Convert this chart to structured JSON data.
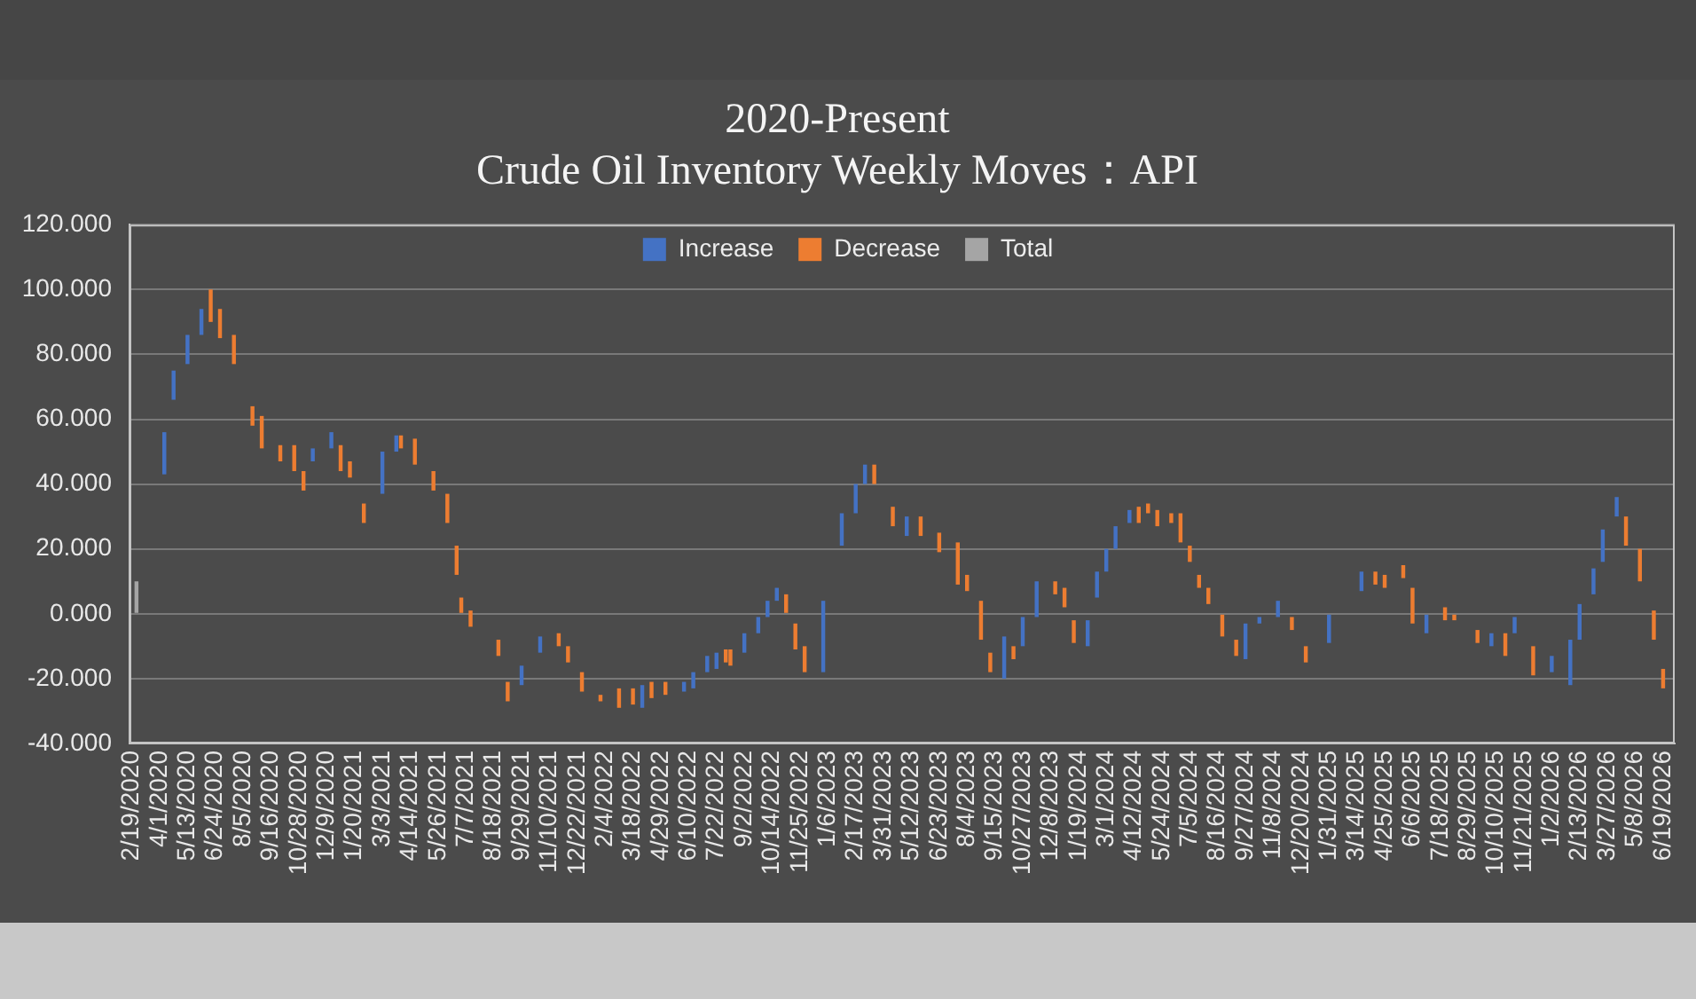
{
  "chart_data": {
    "type": "bar",
    "title": "2020-Present",
    "subtitle": "Crude Oil Inventory Weekly Moves：API",
    "categories": [
      "2/19/2020",
      null,
      null,
      null,
      null,
      null,
      "4/1/2020",
      null,
      null,
      null,
      null,
      null,
      "5/13/2020",
      null,
      null,
      null,
      null,
      null,
      "6/24/2020",
      null,
      null,
      null,
      null,
      null,
      "8/5/2020",
      null,
      null,
      null,
      null,
      null,
      "9/16/2020",
      null,
      null,
      null,
      null,
      null,
      "10/28/2020",
      null,
      null,
      null,
      null,
      null,
      "12/9/2020",
      null,
      null,
      null,
      null,
      null,
      "1/20/2021",
      null,
      null,
      null,
      null,
      null,
      "3/3/2021",
      null,
      null,
      null,
      null,
      null,
      "4/14/2021",
      null,
      null,
      null,
      null,
      null,
      "5/26/2021",
      null,
      null,
      null,
      null,
      null,
      "7/7/2021",
      null,
      null,
      null,
      null,
      null,
      "8/18/2021",
      null,
      null,
      null,
      null,
      null,
      "9/29/2021",
      null,
      null,
      null,
      null,
      null,
      "11/10/2021",
      null,
      null,
      null,
      null,
      null,
      "12/22/2021",
      null,
      null,
      null,
      null,
      null,
      "2/4/2022",
      null,
      null,
      null,
      null,
      null,
      "3/18/2022",
      null,
      null,
      null,
      null,
      null,
      "4/29/2022",
      null,
      null,
      null,
      null,
      null,
      "6/10/2022",
      null,
      null,
      null,
      null,
      null,
      "7/22/2022",
      null,
      null,
      null,
      null,
      null,
      "9/2/2022",
      null,
      null,
      null,
      null,
      null,
      "10/14/2022",
      null,
      null,
      null,
      null,
      null,
      "11/25/2022",
      null,
      null,
      null,
      null,
      null,
      "1/6/2023",
      null,
      null,
      null,
      null,
      null,
      "2/17/2023",
      null,
      null,
      null,
      null,
      null,
      "3/31/2023",
      null,
      null,
      null,
      null,
      null,
      "5/12/2023",
      null,
      null,
      null,
      null,
      null,
      "6/23/2023",
      null,
      null,
      null,
      null,
      null,
      "8/4/2023",
      null,
      null,
      null,
      null,
      null,
      "9/15/2023",
      null,
      null,
      null,
      null,
      null,
      "10/27/2023",
      null,
      null,
      null,
      null,
      null,
      "12/8/2023",
      null,
      null,
      null,
      null,
      null,
      "1/19/2024",
      null,
      null,
      null,
      null,
      null,
      "3/1/2024",
      null,
      null,
      null,
      null,
      null,
      "4/12/2024",
      null,
      null,
      null,
      null,
      null,
      "5/24/2024",
      null,
      null,
      null,
      null,
      null,
      "7/5/2024",
      null,
      null,
      null,
      null,
      null,
      "8/16/2024",
      null,
      null,
      null,
      null,
      null,
      "9/27/2024",
      null,
      null,
      null,
      null,
      null,
      "11/8/2024",
      null,
      null,
      null,
      null,
      null,
      "12/20/2024",
      null,
      null,
      null,
      null,
      null,
      "1/31/2025",
      null,
      null,
      null,
      null,
      null,
      "3/14/2025",
      null,
      null,
      null,
      null,
      null,
      "4/25/2025",
      null,
      null,
      null,
      null,
      null,
      "6/6/2025",
      null,
      null,
      null,
      null,
      null,
      "7/18/2025",
      null,
      null,
      null,
      null,
      null,
      "8/29/2025",
      null,
      null,
      null,
      null,
      null,
      "10/10/2025",
      null,
      null,
      null,
      null,
      null,
      "11/21/2025",
      null,
      null,
      null,
      null,
      null,
      "1/2/2026",
      null,
      null,
      null,
      null,
      null,
      "2/13/2026",
      null,
      null,
      null,
      null,
      null,
      "3/27/2026",
      null,
      null,
      null,
      null,
      null,
      "5/8/2026",
      null,
      null,
      null,
      null,
      null,
      "6/19/2026",
      null,
      null
    ],
    "series": [
      {
        "name": "Increase",
        "color": "#4472c4",
        "base": [
          null,
          null,
          null,
          null,
          null,
          null,
          null,
          43,
          null,
          66,
          null,
          null,
          77,
          null,
          null,
          86,
          null,
          null,
          null,
          null,
          null,
          null,
          null,
          null,
          null,
          null,
          null,
          null,
          null,
          null,
          null,
          null,
          null,
          null,
          null,
          null,
          null,
          null,
          null,
          47,
          null,
          null,
          null,
          51,
          null,
          null,
          null,
          null,
          null,
          null,
          null,
          null,
          null,
          null,
          37,
          null,
          null,
          50,
          null,
          null,
          null,
          null,
          null,
          null,
          null,
          null,
          null,
          null,
          null,
          null,
          null,
          null,
          null,
          null,
          null,
          null,
          null,
          null,
          null,
          null,
          null,
          null,
          null,
          null,
          -22,
          null,
          null,
          null,
          -12,
          null,
          null,
          null,
          null,
          null,
          null,
          null,
          null,
          null,
          null,
          null,
          null,
          null,
          null,
          null,
          null,
          null,
          null,
          null,
          null,
          null,
          -29,
          null,
          null,
          null,
          null,
          null,
          null,
          null,
          null,
          -24,
          null,
          -23,
          null,
          null,
          -18,
          null,
          -17,
          null,
          null,
          null,
          null,
          null,
          -12,
          null,
          null,
          -6,
          null,
          -1,
          null,
          4,
          null,
          null,
          null,
          null,
          null,
          null,
          null,
          null,
          null,
          -18,
          null,
          null,
          null,
          21,
          null,
          null,
          31,
          null,
          40,
          null,
          null,
          null,
          null,
          null,
          null,
          null,
          null,
          24,
          null,
          null,
          null,
          null,
          null,
          null,
          null,
          null,
          null,
          null,
          null,
          null,
          null,
          null,
          null,
          null,
          null,
          null,
          null,
          null,
          -20,
          null,
          null,
          null,
          -10,
          null,
          null,
          -1,
          null,
          null,
          null,
          null,
          null,
          null,
          null,
          null,
          null,
          null,
          -10,
          null,
          5,
          null,
          13,
          null,
          20,
          null,
          null,
          28,
          null,
          null,
          null,
          null,
          null,
          null,
          null,
          null,
          null,
          null,
          null,
          null,
          null,
          null,
          null,
          null,
          null,
          null,
          null,
          null,
          null,
          null,
          null,
          null,
          -14,
          null,
          null,
          -3,
          null,
          null,
          null,
          -1,
          null,
          null,
          null,
          null,
          null,
          null,
          null,
          null,
          null,
          null,
          -9,
          null,
          null,
          null,
          null,
          null,
          null,
          7,
          null,
          null,
          null,
          null,
          null,
          null,
          null,
          null,
          null,
          null,
          null,
          null,
          null,
          -6,
          null,
          null,
          null,
          null,
          null,
          null,
          null,
          null,
          null,
          null,
          null,
          null,
          null,
          -10,
          null,
          null,
          null,
          null,
          -6,
          null,
          null,
          null,
          null,
          null,
          null,
          null,
          -18,
          null,
          null,
          null,
          -22,
          null,
          -8,
          null,
          null,
          6,
          null,
          16,
          null,
          null,
          30,
          null,
          null,
          null,
          null,
          null,
          null,
          null,
          null,
          null,
          null,
          null,
          null
        ],
        "values": [
          null,
          null,
          null,
          null,
          null,
          null,
          null,
          13,
          null,
          9,
          null,
          null,
          9,
          null,
          null,
          8,
          null,
          null,
          null,
          null,
          null,
          null,
          null,
          null,
          null,
          null,
          null,
          null,
          null,
          null,
          null,
          null,
          null,
          null,
          null,
          null,
          null,
          null,
          null,
          4,
          null,
          null,
          null,
          5,
          null,
          null,
          null,
          null,
          null,
          null,
          null,
          null,
          null,
          null,
          13,
          null,
          null,
          5,
          null,
          null,
          null,
          null,
          null,
          null,
          null,
          null,
          null,
          null,
          null,
          null,
          null,
          null,
          null,
          null,
          null,
          null,
          null,
          null,
          null,
          null,
          null,
          null,
          null,
          null,
          6,
          null,
          null,
          null,
          5,
          null,
          null,
          null,
          null,
          null,
          null,
          null,
          null,
          null,
          null,
          null,
          null,
          null,
          null,
          null,
          null,
          null,
          null,
          null,
          null,
          null,
          7,
          null,
          null,
          null,
          null,
          null,
          null,
          null,
          null,
          3,
          null,
          5,
          null,
          null,
          5,
          null,
          5,
          null,
          null,
          null,
          null,
          null,
          6,
          null,
          null,
          5,
          null,
          5,
          null,
          4,
          null,
          null,
          null,
          null,
          null,
          null,
          null,
          null,
          null,
          22,
          null,
          null,
          null,
          10,
          null,
          null,
          9,
          null,
          6,
          null,
          null,
          null,
          null,
          null,
          null,
          null,
          null,
          6,
          null,
          null,
          null,
          null,
          null,
          null,
          null,
          null,
          null,
          null,
          null,
          null,
          null,
          null,
          null,
          null,
          null,
          null,
          null,
          null,
          13,
          null,
          null,
          null,
          9,
          null,
          null,
          11,
          null,
          null,
          null,
          null,
          null,
          null,
          null,
          null,
          null,
          null,
          8,
          null,
          8,
          null,
          7,
          null,
          7,
          null,
          null,
          4,
          null,
          null,
          null,
          null,
          null,
          null,
          null,
          null,
          null,
          null,
          null,
          null,
          null,
          null,
          null,
          null,
          null,
          null,
          null,
          null,
          null,
          null,
          null,
          null,
          11,
          null,
          null,
          2,
          null,
          null,
          null,
          5,
          null,
          null,
          null,
          null,
          null,
          null,
          null,
          null,
          null,
          null,
          9,
          null,
          null,
          null,
          null,
          null,
          null,
          6,
          null,
          null,
          null,
          null,
          null,
          null,
          null,
          null,
          null,
          null,
          null,
          null,
          null,
          6,
          null,
          null,
          null,
          null,
          null,
          null,
          null,
          null,
          null,
          null,
          null,
          null,
          null,
          4,
          null,
          null,
          null,
          null,
          5,
          null,
          null,
          null,
          null,
          null,
          null,
          null,
          5,
          null,
          null,
          null,
          14,
          null,
          11,
          null,
          null,
          8,
          null,
          10,
          null,
          null,
          6,
          null,
          null,
          null,
          null,
          null,
          null,
          null,
          null,
          null,
          null,
          null,
          null
        ]
      },
      {
        "name": "Decrease",
        "color": "#ed7d31",
        "base": [
          null,
          null,
          null,
          null,
          null,
          null,
          null,
          null,
          null,
          null,
          null,
          null,
          null,
          null,
          null,
          null,
          null,
          100,
          null,
          94,
          null,
          null,
          86,
          null,
          null,
          null,
          64,
          null,
          61,
          null,
          null,
          null,
          52,
          null,
          null,
          52,
          null,
          44,
          null,
          null,
          null,
          null,
          null,
          null,
          null,
          52,
          null,
          47,
          null,
          null,
          34,
          null,
          null,
          null,
          null,
          null,
          null,
          null,
          55,
          null,
          null,
          54,
          null,
          null,
          null,
          44,
          null,
          null,
          37,
          null,
          21,
          5,
          null,
          1,
          null,
          null,
          null,
          null,
          null,
          -8,
          null,
          -21,
          null,
          null,
          null,
          null,
          null,
          null,
          null,
          null,
          null,
          null,
          -6,
          null,
          -10,
          null,
          null,
          -18,
          null,
          null,
          null,
          -25,
          null,
          null,
          null,
          -23,
          null,
          null,
          -23,
          null,
          null,
          null,
          -21,
          null,
          null,
          -21,
          null,
          null,
          null,
          null,
          null,
          null,
          null,
          null,
          null,
          null,
          null,
          null,
          -11,
          -11,
          null,
          null,
          null,
          null,
          null,
          null,
          null,
          null,
          null,
          null,
          null,
          6,
          null,
          -3,
          null,
          -10,
          null,
          null,
          null,
          null,
          null,
          null,
          null,
          null,
          null,
          null,
          null,
          null,
          null,
          null,
          46,
          null,
          null,
          null,
          33,
          null,
          null,
          null,
          null,
          null,
          30,
          null,
          null,
          null,
          25,
          null,
          null,
          null,
          22,
          null,
          12,
          null,
          null,
          4,
          null,
          -12,
          null,
          null,
          null,
          null,
          -10,
          null,
          null,
          null,
          null,
          null,
          null,
          null,
          null,
          10,
          null,
          8,
          null,
          -2,
          null,
          null,
          null,
          null,
          null,
          null,
          null,
          null,
          null,
          null,
          null,
          null,
          null,
          33,
          null,
          34,
          null,
          32,
          null,
          null,
          31,
          null,
          31,
          null,
          21,
          null,
          12,
          null,
          8,
          null,
          null,
          0,
          null,
          null,
          -8,
          null,
          null,
          null,
          null,
          null,
          null,
          null,
          null,
          null,
          null,
          null,
          -1,
          null,
          null,
          -10,
          null,
          null,
          null,
          null,
          null,
          null,
          null,
          null,
          null,
          null,
          null,
          null,
          null,
          null,
          13,
          null,
          12,
          null,
          null,
          null,
          15,
          null,
          8,
          null,
          null,
          null,
          null,
          null,
          null,
          2,
          null,
          0,
          null,
          null,
          null,
          null,
          -5,
          null,
          null,
          null,
          null,
          null,
          -6,
          null,
          null,
          null,
          null,
          null,
          -10,
          null,
          null,
          null,
          null,
          null,
          null,
          null,
          null,
          null,
          null,
          null,
          null,
          null,
          null,
          null,
          null,
          null,
          null,
          null,
          30,
          null,
          null,
          20,
          null,
          null,
          1,
          null,
          -17,
          null,
          null
        ],
        "values": [
          null,
          null,
          null,
          null,
          null,
          null,
          null,
          null,
          null,
          null,
          null,
          null,
          null,
          null,
          null,
          null,
          null,
          -10,
          null,
          -9,
          null,
          null,
          -9,
          null,
          null,
          null,
          -6,
          null,
          -10,
          null,
          null,
          null,
          -5,
          null,
          null,
          -8,
          null,
          -6,
          null,
          null,
          null,
          null,
          null,
          null,
          null,
          -8,
          null,
          -5,
          null,
          null,
          -6,
          null,
          null,
          null,
          null,
          null,
          null,
          null,
          -4,
          null,
          null,
          -8,
          null,
          null,
          null,
          -6,
          null,
          null,
          -9,
          null,
          -9,
          -5,
          null,
          -5,
          null,
          null,
          null,
          null,
          null,
          -5,
          null,
          -6,
          null,
          null,
          null,
          null,
          null,
          null,
          null,
          null,
          null,
          null,
          -4,
          null,
          -5,
          null,
          null,
          -6,
          null,
          null,
          null,
          -2,
          null,
          null,
          null,
          -6,
          null,
          null,
          -5,
          null,
          null,
          null,
          -5,
          null,
          null,
          -4,
          null,
          null,
          null,
          null,
          null,
          null,
          null,
          null,
          null,
          null,
          null,
          null,
          -4,
          -5,
          null,
          null,
          null,
          null,
          null,
          null,
          null,
          null,
          null,
          null,
          null,
          -6,
          null,
          -8,
          null,
          -8,
          null,
          null,
          null,
          null,
          null,
          null,
          null,
          null,
          null,
          null,
          null,
          null,
          null,
          null,
          -6,
          null,
          null,
          null,
          -6,
          null,
          null,
          null,
          null,
          null,
          -6,
          null,
          null,
          null,
          -6,
          null,
          null,
          null,
          -13,
          null,
          -5,
          null,
          null,
          -12,
          null,
          -6,
          null,
          null,
          null,
          null,
          -4,
          null,
          null,
          null,
          null,
          null,
          null,
          null,
          null,
          -4,
          null,
          -6,
          null,
          -7,
          null,
          null,
          null,
          null,
          null,
          null,
          null,
          null,
          null,
          null,
          null,
          null,
          null,
          -5,
          null,
          -3,
          null,
          -5,
          null,
          null,
          -3,
          null,
          -9,
          null,
          -5,
          null,
          -4,
          null,
          -5,
          null,
          null,
          -7,
          null,
          null,
          -5,
          null,
          null,
          null,
          null,
          null,
          null,
          null,
          null,
          null,
          null,
          null,
          -4,
          null,
          null,
          -5,
          null,
          null,
          null,
          null,
          null,
          null,
          null,
          null,
          null,
          null,
          null,
          null,
          null,
          null,
          -4,
          null,
          -4,
          null,
          null,
          null,
          -4,
          null,
          -11,
          null,
          null,
          null,
          null,
          null,
          null,
          -4,
          null,
          -2,
          null,
          null,
          null,
          null,
          -4,
          null,
          null,
          null,
          null,
          null,
          -7,
          null,
          null,
          null,
          null,
          null,
          -9,
          null,
          null,
          null,
          null,
          null,
          null,
          null,
          null,
          null,
          null,
          null,
          null,
          null,
          null,
          null,
          null,
          null,
          null,
          null,
          -9,
          null,
          null,
          -10,
          null,
          null,
          -9,
          null,
          -6,
          null,
          null
        ]
      },
      {
        "name": "Total",
        "color": "#a5a5a5",
        "values": [
          null,
          10,
          null,
          null,
          null,
          null,
          null,
          null,
          null,
          null,
          null,
          null,
          null,
          null,
          null,
          null,
          null,
          null,
          null,
          null,
          null,
          null,
          null,
          null,
          null,
          null,
          null,
          null,
          null,
          null,
          null,
          null,
          null,
          null,
          null,
          null,
          null,
          null,
          null,
          null,
          null,
          null,
          null,
          null,
          null,
          null,
          null,
          null,
          null,
          null,
          null,
          null,
          null,
          null,
          null,
          null,
          null,
          null,
          null,
          null,
          null,
          null,
          null,
          null,
          null,
          null,
          null,
          null,
          null,
          null,
          null,
          null,
          null,
          null,
          null,
          null,
          null,
          null,
          null,
          null,
          null,
          null,
          null,
          null,
          null,
          null,
          null,
          null,
          null,
          null,
          null,
          null,
          null,
          null,
          null,
          null,
          null,
          null,
          null,
          null,
          null,
          null,
          null,
          null,
          null,
          null,
          null,
          null,
          null,
          null,
          null,
          null,
          null,
          null,
          null,
          null,
          null,
          null,
          null,
          null,
          null,
          null,
          null,
          null,
          null,
          null,
          null,
          null,
          null,
          null,
          null,
          null,
          null,
          null,
          null,
          null,
          null,
          null,
          null,
          null,
          null,
          null,
          null,
          null,
          null,
          null,
          null,
          null,
          null,
          null,
          null,
          null,
          null,
          null,
          null,
          null,
          null,
          null,
          null,
          null,
          null,
          null,
          null,
          null,
          null,
          null,
          null,
          null,
          null,
          null,
          null,
          null,
          null,
          null,
          null,
          null,
          null,
          null,
          null,
          null,
          null,
          null,
          null,
          null,
          null,
          null,
          null,
          null,
          null,
          null,
          null,
          null,
          null,
          null,
          null,
          null,
          null,
          null,
          null,
          null,
          null,
          null,
          null,
          null,
          null,
          null,
          null,
          null,
          null,
          null,
          null,
          null,
          null,
          null,
          null,
          null,
          null,
          null,
          null,
          null,
          null,
          null,
          null,
          null,
          null,
          null,
          null,
          null,
          null,
          null,
          null,
          null,
          null,
          null,
          null,
          null,
          null,
          null,
          null,
          null,
          null,
          null,
          null,
          null,
          null,
          null,
          null,
          null,
          null,
          null,
          null,
          null,
          null,
          null,
          null,
          null,
          null,
          null,
          null,
          null,
          null,
          null,
          null,
          null,
          null,
          null,
          null,
          null,
          null,
          null,
          null,
          null,
          null,
          null,
          null,
          null,
          null,
          null,
          null,
          null,
          null,
          null,
          null,
          null,
          null,
          null,
          null,
          null,
          null,
          null,
          null,
          null,
          null,
          null,
          null,
          null,
          null,
          null,
          null,
          null,
          null,
          null,
          null,
          null,
          null,
          null,
          null,
          null,
          null,
          null,
          null,
          null,
          null,
          null,
          null,
          null,
          null,
          null,
          null,
          null,
          null,
          null,
          null,
          null,
          null,
          null,
          null,
          null,
          null,
          null,
          null,
          null,
          null
        ]
      }
    ],
    "ylim": [
      -40,
      120
    ],
    "yticks": [
      {
        "value": -40,
        "label": "-40.000"
      },
      {
        "value": -20,
        "label": "-20.000"
      },
      {
        "value": 0,
        "label": "0.000"
      },
      {
        "value": 20,
        "label": "20.000"
      },
      {
        "value": 40,
        "label": "40.000"
      },
      {
        "value": 60,
        "label": "60.000"
      },
      {
        "value": 80,
        "label": "80.000"
      },
      {
        "value": 100,
        "label": "100.000"
      },
      {
        "value": 120,
        "label": "120.000"
      }
    ],
    "grid": "y",
    "legend": "top"
  }
}
